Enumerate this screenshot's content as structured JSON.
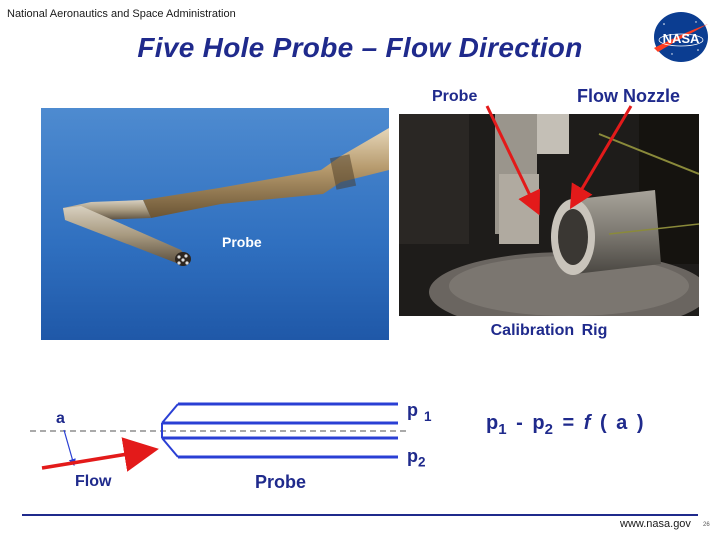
{
  "header": {
    "agency": "National Aeronautics and Space Administration",
    "title": "Five  Hole  Probe – Flow Direction",
    "logo_text": "NASA"
  },
  "photo_left": {
    "label": "Probe"
  },
  "photo_right": {
    "probe_label": "Probe",
    "nozzle_label": "Flow Nozzle",
    "caption": "Calibration  Rig"
  },
  "diagram": {
    "angle_label": "a",
    "flow_label": "Flow",
    "probe_label": "Probe",
    "p1": "p",
    "p1_sub": "1",
    "p2": "p",
    "p2_sub": "2"
  },
  "equation": {
    "lhs_a": "p",
    "lhs_a_sub": "1",
    "minus": "-",
    "lhs_b": "p",
    "lhs_b_sub": "2",
    "equals": "=",
    "fn": "f",
    "arg": "( a )"
  },
  "footer": {
    "url": "www.nasa.gov",
    "page": "26"
  },
  "colors": {
    "title_blue": "#1f2a8c",
    "probe_line_blue": "#2a3fd4",
    "arrow_red": "#e31a1a",
    "nasa_blue": "#0b3d91",
    "nasa_red": "#fc3d21"
  }
}
